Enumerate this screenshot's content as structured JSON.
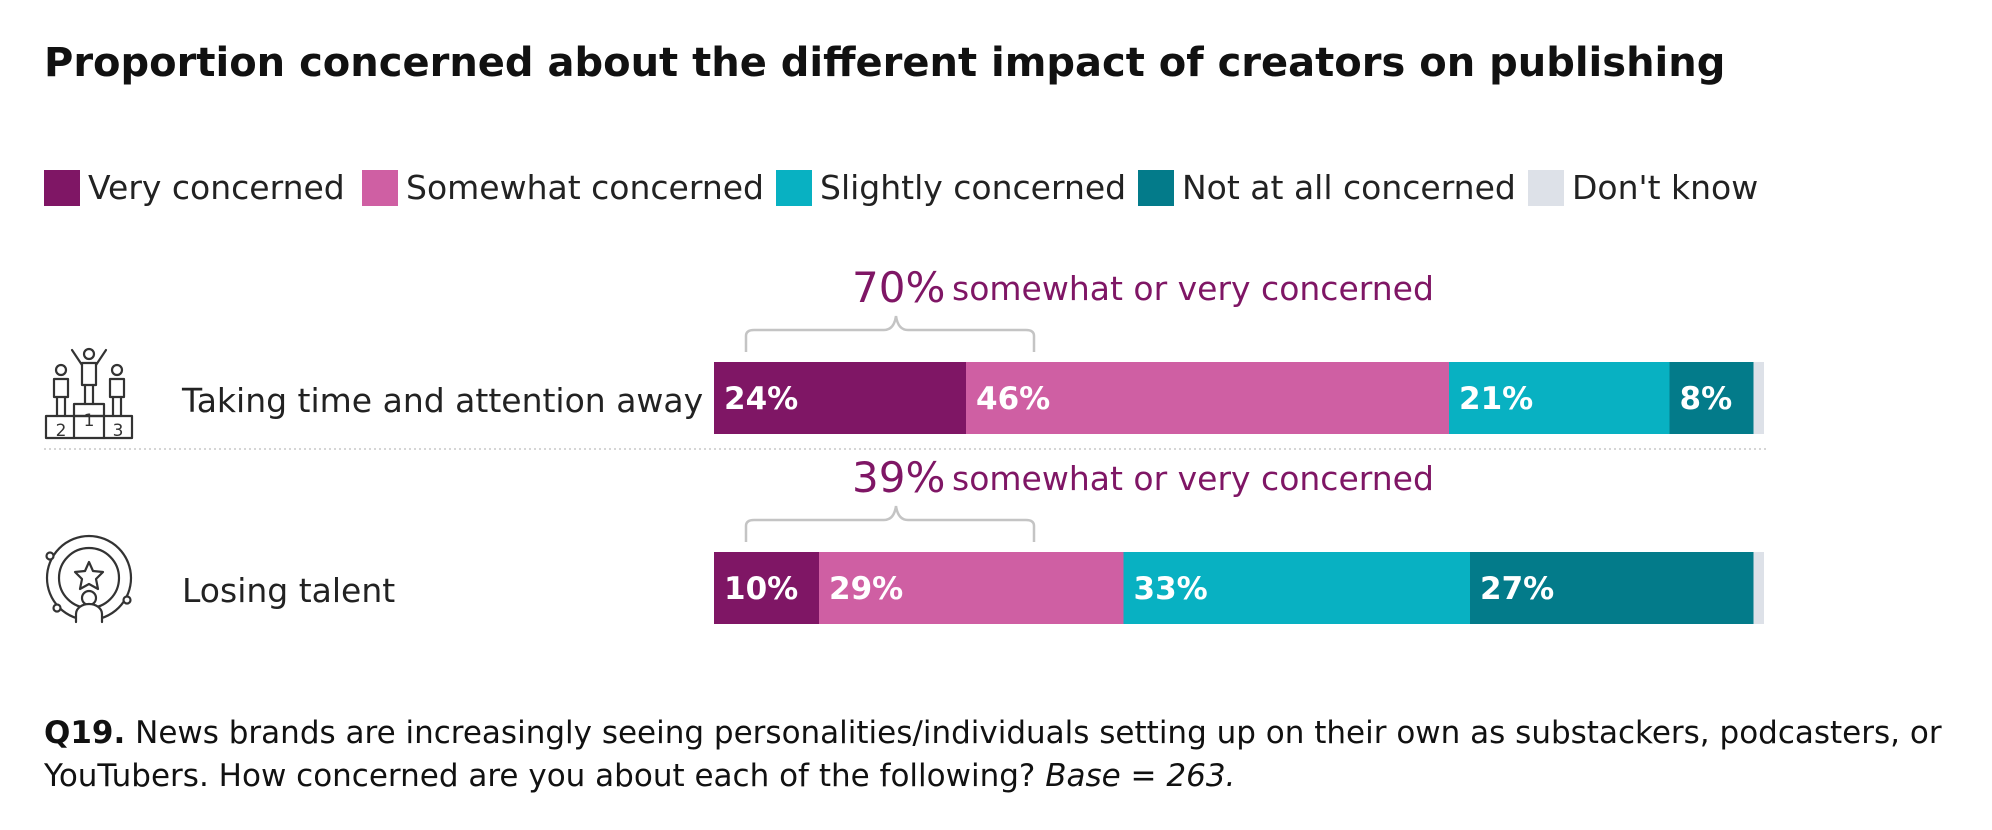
{
  "chart_data": {
    "type": "bar",
    "orientation": "horizontal",
    "stacked": true,
    "title": "Proportion concerned about the different impact of creators on publishing",
    "categories": [
      "Taking time and attention away",
      "Losing talent"
    ],
    "series": [
      {
        "name": "Very concerned",
        "color": "#7f1665",
        "values": [
          24,
          10
        ],
        "labels": [
          "24%",
          "10%"
        ]
      },
      {
        "name": "Somewhat concerned",
        "color": "#cf5fa3",
        "values": [
          46,
          29
        ],
        "labels": [
          "46%",
          "29%"
        ]
      },
      {
        "name": "Slightly concerned",
        "color": "#08b1c2",
        "values": [
          21,
          33
        ],
        "labels": [
          "21%",
          "33%"
        ]
      },
      {
        "name": "Not at all concerned",
        "color": "#037b8a",
        "values": [
          8,
          27
        ],
        "labels": [
          "8%",
          "27%"
        ]
      },
      {
        "name": "Don't know",
        "color": "#dde1e8",
        "values": [
          1,
          1
        ],
        "labels": [
          "",
          ""
        ]
      }
    ],
    "annotations": [
      {
        "category": "Taking time and attention away",
        "value": "70%",
        "text": "somewhat or very concerned"
      },
      {
        "category": "Losing talent",
        "value": "39%",
        "text": "somewhat or very concerned"
      }
    ],
    "icons": [
      "podium-icon",
      "talent-star-person-icon"
    ],
    "xlim": [
      0,
      100
    ],
    "legend_position": "top-left"
  },
  "footnote": {
    "question_id": "Q19.",
    "text": " News brands are increasingly seeing personalities/individuals setting up on their own as substackers, podcasters, or YouTubers. How concerned are you about each of the following? ",
    "base": "Base = 263."
  }
}
